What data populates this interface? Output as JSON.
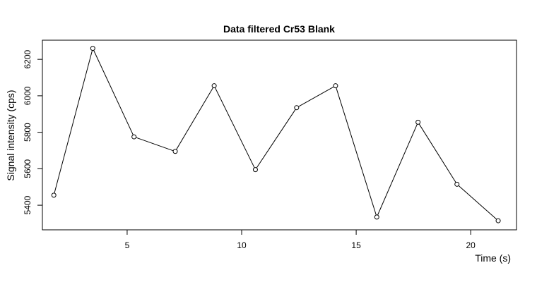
{
  "chart_data": {
    "type": "line",
    "title": "Data filtered Cr53 Blank",
    "xlabel": "Time (s)",
    "ylabel": "Signal intensity (cps)",
    "xlim": [
      1.3,
      22.0
    ],
    "ylim": [
      5265,
      6305
    ],
    "x_ticks": [
      5,
      10,
      15,
      20
    ],
    "y_ticks": [
      5400,
      5600,
      5800,
      6000,
      6200
    ],
    "grid": false,
    "markers": "open-circle",
    "line_color": "#000000",
    "series": [
      {
        "x": [
          1.8,
          3.5,
          5.3,
          7.1,
          8.8,
          10.6,
          12.4,
          14.1,
          15.9,
          17.7,
          19.4,
          21.2
        ],
        "y": [
          5455,
          6260,
          5775,
          5695,
          6055,
          5595,
          5935,
          6055,
          5335,
          5855,
          5515,
          5315
        ]
      }
    ]
  }
}
